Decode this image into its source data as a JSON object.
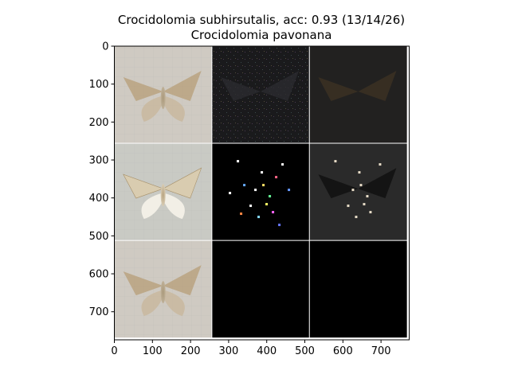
{
  "chart_data": {
    "type": "image-grid",
    "title": "Crocidolomia subhirsutalis, acc: 0.93 (13/14/26)",
    "subtitle": "Crocidolomia pavonana",
    "xlim": [
      0,
      774
    ],
    "ylim": [
      774,
      0
    ],
    "xticks": [
      0,
      100,
      200,
      300,
      400,
      500,
      600,
      700
    ],
    "yticks": [
      0,
      100,
      200,
      300,
      400,
      500,
      600,
      700
    ],
    "grid_rows": 3,
    "grid_cols": 3,
    "tile_size": 256,
    "tiles": [
      {
        "row": 0,
        "col": 0,
        "content": "moth-photo-faded",
        "fill": "#cfcac2"
      },
      {
        "row": 0,
        "col": 1,
        "content": "noise-attribution-map",
        "fill": "#1a1a1c"
      },
      {
        "row": 0,
        "col": 2,
        "content": "dark-overlay",
        "fill": "#222120"
      },
      {
        "row": 1,
        "col": 0,
        "content": "moth-photo",
        "fill": "#c9cac4"
      },
      {
        "row": 1,
        "col": 1,
        "content": "sparse-saliency-map",
        "fill": "#000000"
      },
      {
        "row": 1,
        "col": 2,
        "content": "masked-overlay",
        "fill": "#2a2a2a"
      },
      {
        "row": 2,
        "col": 0,
        "content": "moth-photo-faded",
        "fill": "#cfcac2"
      },
      {
        "row": 2,
        "col": 1,
        "content": "blank",
        "fill": "#000000"
      },
      {
        "row": 2,
        "col": 2,
        "content": "blank",
        "fill": "#000000"
      }
    ]
  }
}
